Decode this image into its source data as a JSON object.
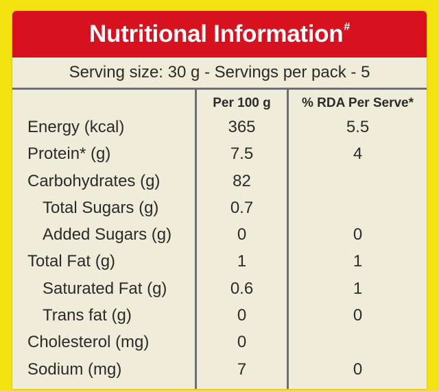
{
  "title": "Nutritional Information",
  "title_mark": "#",
  "serving_line": "Serving size: 30 g - Servings per pack - 5",
  "columns": {
    "per100": "Per 100 g",
    "rda": "% RDA Per Serve*"
  },
  "rows": [
    {
      "label": "Energy (kcal)",
      "per100": "365",
      "rda": "5.5",
      "indent": false
    },
    {
      "label": "Protein* (g)",
      "per100": "7.5",
      "rda": "4",
      "indent": false
    },
    {
      "label": "Carbohydrates (g)",
      "per100": "82",
      "rda": "",
      "indent": false
    },
    {
      "label": "Total Sugars (g)",
      "per100": "0.7",
      "rda": "",
      "indent": true
    },
    {
      "label": "Added Sugars (g)",
      "per100": "0",
      "rda": "0",
      "indent": true
    },
    {
      "label": "Total Fat (g)",
      "per100": "1",
      "rda": "1",
      "indent": false
    },
    {
      "label": "Saturated Fat (g)",
      "per100": "0.6",
      "rda": "1",
      "indent": true
    },
    {
      "label": "Trans fat (g)",
      "per100": "0",
      "rda": "0",
      "indent": true
    },
    {
      "label": "Cholesterol (mg)",
      "per100": "0",
      "rda": "",
      "indent": false
    },
    {
      "label": "Sodium (mg)",
      "per100": "7",
      "rda": "0",
      "indent": false
    }
  ],
  "colors": {
    "background": "#f2e30e",
    "panel": "#efecd9",
    "header": "#d8111f",
    "rules": "#6f6f6f",
    "text": "#2a2a2a"
  }
}
